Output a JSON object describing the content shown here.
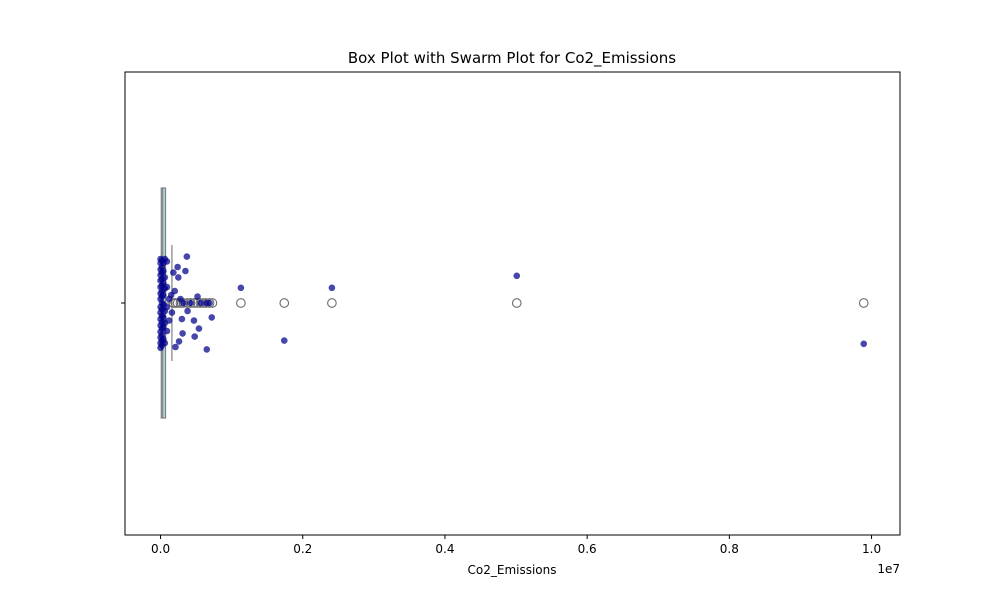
{
  "chart_data": {
    "type": "box",
    "title": "Box Plot with Swarm Plot for Co2_Emissions",
    "xlabel": "Co2_Emissions",
    "x_offset_text": "1e7",
    "xlim": [
      -500000,
      10400000
    ],
    "x_ticks": [
      0,
      2000000,
      4000000,
      6000000,
      8000000,
      10000000
    ],
    "x_tick_labels": [
      "0.0",
      "0.2",
      "0.4",
      "0.6",
      "0.8",
      "1.0"
    ],
    "grid": false,
    "colors": {
      "box_fill": "#add8e6",
      "box_edge": "#808080",
      "points": "#00008b"
    },
    "box": {
      "q1": 10000,
      "median": 30000,
      "q3": 70000,
      "whisker_low": 0,
      "whisker_high": 160000
    },
    "outliers": [
      180000,
      210000,
      240000,
      280000,
      320000,
      380000,
      420000,
      470000,
      520000,
      560000,
      600000,
      640000,
      690000,
      730000,
      1130000,
      1740000,
      2410000,
      5010000,
      9890000
    ],
    "swarm_points": [
      {
        "x": 0,
        "jitter": 0.55
      },
      {
        "x": 0,
        "jitter": 0.5
      },
      {
        "x": 0,
        "jitter": 0.42
      },
      {
        "x": 0,
        "jitter": 0.35
      },
      {
        "x": 0,
        "jitter": 0.28
      },
      {
        "x": 0,
        "jitter": 0.2
      },
      {
        "x": 0,
        "jitter": 0.12
      },
      {
        "x": 0,
        "jitter": 0.05
      },
      {
        "x": 0,
        "jitter": -0.05
      },
      {
        "x": 0,
        "jitter": -0.12
      },
      {
        "x": 0,
        "jitter": -0.2
      },
      {
        "x": 0,
        "jitter": -0.28
      },
      {
        "x": 0,
        "jitter": -0.36
      },
      {
        "x": 0,
        "jitter": -0.43
      },
      {
        "x": 0,
        "jitter": -0.5
      },
      {
        "x": 0,
        "jitter": -0.56
      },
      {
        "x": 20000,
        "jitter": 0.53
      },
      {
        "x": 20000,
        "jitter": 0.45
      },
      {
        "x": 20000,
        "jitter": 0.38
      },
      {
        "x": 20000,
        "jitter": 0.3
      },
      {
        "x": 20000,
        "jitter": 0.22
      },
      {
        "x": 20000,
        "jitter": 0.15
      },
      {
        "x": 20000,
        "jitter": 0.08
      },
      {
        "x": 20000,
        "jitter": 0.0
      },
      {
        "x": 20000,
        "jitter": -0.08
      },
      {
        "x": 20000,
        "jitter": -0.16
      },
      {
        "x": 20000,
        "jitter": -0.24
      },
      {
        "x": 20000,
        "jitter": -0.32
      },
      {
        "x": 20000,
        "jitter": -0.4
      },
      {
        "x": 20000,
        "jitter": -0.47
      },
      {
        "x": 20000,
        "jitter": -0.53
      },
      {
        "x": 40000,
        "jitter": 0.5
      },
      {
        "x": 40000,
        "jitter": 0.4
      },
      {
        "x": 40000,
        "jitter": 0.25
      },
      {
        "x": 40000,
        "jitter": 0.1
      },
      {
        "x": 40000,
        "jitter": -0.02
      },
      {
        "x": 40000,
        "jitter": -0.18
      },
      {
        "x": 40000,
        "jitter": -0.3
      },
      {
        "x": 40000,
        "jitter": -0.45
      },
      {
        "x": 60000,
        "jitter": 0.55
      },
      {
        "x": 60000,
        "jitter": 0.32
      },
      {
        "x": 60000,
        "jitter": 0.18
      },
      {
        "x": 60000,
        "jitter": -0.1
      },
      {
        "x": 60000,
        "jitter": -0.25
      },
      {
        "x": 60000,
        "jitter": -0.5
      },
      {
        "x": 90000,
        "jitter": 0.52
      },
      {
        "x": 90000,
        "jitter": 0.2
      },
      {
        "x": 90000,
        "jitter": -0.05
      },
      {
        "x": 90000,
        "jitter": -0.35
      },
      {
        "x": 120000,
        "jitter": 0.05
      },
      {
        "x": 120000,
        "jitter": -0.22
      },
      {
        "x": 150000,
        "jitter": 0.1
      },
      {
        "x": 160000,
        "jitter": -0.12
      },
      {
        "x": 180000,
        "jitter": 0.38
      },
      {
        "x": 200000,
        "jitter": 0.15
      },
      {
        "x": 210000,
        "jitter": -0.55
      },
      {
        "x": 240000,
        "jitter": 0.45
      },
      {
        "x": 250000,
        "jitter": 0.32
      },
      {
        "x": 260000,
        "jitter": -0.48
      },
      {
        "x": 280000,
        "jitter": 0.05
      },
      {
        "x": 300000,
        "jitter": -0.2
      },
      {
        "x": 310000,
        "jitter": -0.38
      },
      {
        "x": 320000,
        "jitter": 0.0
      },
      {
        "x": 350000,
        "jitter": 0.4
      },
      {
        "x": 370000,
        "jitter": 0.58
      },
      {
        "x": 380000,
        "jitter": -0.1
      },
      {
        "x": 420000,
        "jitter": 0.0
      },
      {
        "x": 470000,
        "jitter": -0.22
      },
      {
        "x": 480000,
        "jitter": -0.42
      },
      {
        "x": 520000,
        "jitter": 0.08
      },
      {
        "x": 540000,
        "jitter": -0.32
      },
      {
        "x": 560000,
        "jitter": -0.0
      },
      {
        "x": 640000,
        "jitter": 0.0
      },
      {
        "x": 650000,
        "jitter": -0.58
      },
      {
        "x": 690000,
        "jitter": 0.0
      },
      {
        "x": 720000,
        "jitter": -0.18
      },
      {
        "x": 1130000,
        "jitter": 0.19
      },
      {
        "x": 1740000,
        "jitter": -0.47
      },
      {
        "x": 2410000,
        "jitter": 0.19
      },
      {
        "x": 5010000,
        "jitter": 0.34
      },
      {
        "x": 9890000,
        "jitter": -0.51
      }
    ]
  }
}
